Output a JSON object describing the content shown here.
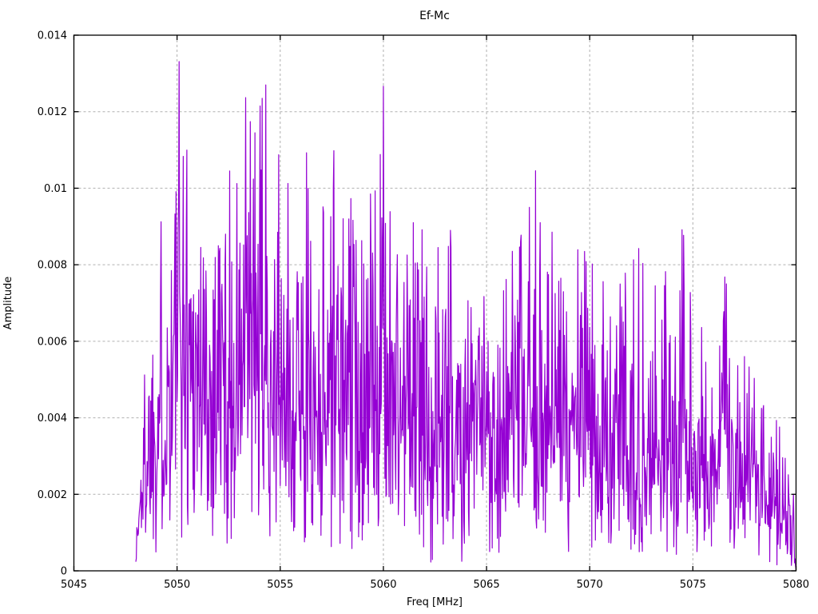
{
  "window": {
    "background": "#ffffff"
  },
  "chart_data": {
    "type": "line",
    "title": "Ef-Mc",
    "xlabel": "Freq [MHz]",
    "ylabel": "Amplitude",
    "xlim": [
      5045,
      5080
    ],
    "ylim": [
      0,
      0.014
    ],
    "xticks": [
      5045,
      5050,
      5055,
      5060,
      5065,
      5070,
      5075,
      5080
    ],
    "xtick_labels": [
      "5045",
      "5050",
      "5055",
      "5060",
      "5065",
      "5070",
      "5075",
      "5080"
    ],
    "yticks": [
      0,
      0.002,
      0.004,
      0.006,
      0.008,
      0.01,
      0.012,
      0.014
    ],
    "ytick_labels": [
      "0",
      "0.002",
      "0.004",
      "0.006",
      "0.008",
      "0.01",
      "0.012",
      "0.014"
    ],
    "grid": {
      "show": true,
      "color": "#b0b0b0",
      "dash": [
        3,
        3
      ]
    },
    "axis_color": "#000000",
    "tick_length": 6,
    "legend_position": "none",
    "series": [
      {
        "name": "Ef-Mc",
        "color": "#9400d3",
        "line_width": 1.2,
        "x_start": 5048.0,
        "x_end": 5080.0,
        "points_per_mhz": 40,
        "noise_seed": 1337,
        "noise_model": "amplitude = envelope(f) * clamp(sqrt(-ln(1-u))/1.9, 0.02, 1), u ~ U(0,1) seeded PRNG",
        "envelope_points": [
          [
            5048.0,
            0.001
          ],
          [
            5048.3,
            0.005
          ],
          [
            5048.6,
            0.0074
          ],
          [
            5049.0,
            0.0092
          ],
          [
            5049.4,
            0.0102
          ],
          [
            5049.7,
            0.0109
          ],
          [
            5050.0,
            0.0137
          ],
          [
            5050.4,
            0.0135
          ],
          [
            5050.7,
            0.0122
          ],
          [
            5051.0,
            0.0117
          ],
          [
            5051.4,
            0.0098
          ],
          [
            5051.7,
            0.0106
          ],
          [
            5052.0,
            0.0121
          ],
          [
            5052.4,
            0.0103
          ],
          [
            5052.8,
            0.0107
          ],
          [
            5053.2,
            0.0119
          ],
          [
            5053.6,
            0.0134
          ],
          [
            5054.0,
            0.0121
          ],
          [
            5054.3,
            0.0127
          ],
          [
            5054.7,
            0.012
          ],
          [
            5055.0,
            0.0105
          ],
          [
            5055.4,
            0.0101
          ],
          [
            5055.8,
            0.0097
          ],
          [
            5056.2,
            0.0113
          ],
          [
            5056.6,
            0.0093
          ],
          [
            5057.0,
            0.0104
          ],
          [
            5057.5,
            0.0127
          ],
          [
            5058.0,
            0.0099
          ],
          [
            5058.5,
            0.0097
          ],
          [
            5059.0,
            0.0124
          ],
          [
            5059.5,
            0.009
          ],
          [
            5059.9,
            0.0133
          ],
          [
            5060.2,
            0.0114
          ],
          [
            5060.6,
            0.01
          ],
          [
            5061.0,
            0.0093
          ],
          [
            5061.5,
            0.0095
          ],
          [
            5062.0,
            0.0089
          ],
          [
            5062.5,
            0.0093
          ],
          [
            5063.0,
            0.0079
          ],
          [
            5063.5,
            0.0099
          ],
          [
            5064.0,
            0.0085
          ],
          [
            5064.5,
            0.0073
          ],
          [
            5065.0,
            0.0083
          ],
          [
            5065.5,
            0.0079
          ],
          [
            5066.0,
            0.0081
          ],
          [
            5066.5,
            0.0086
          ],
          [
            5067.0,
            0.0091
          ],
          [
            5067.3,
            0.0107
          ],
          [
            5067.7,
            0.0094
          ],
          [
            5068.1,
            0.0092
          ],
          [
            5068.5,
            0.0084
          ],
          [
            5069.0,
            0.0087
          ],
          [
            5069.5,
            0.0096
          ],
          [
            5070.0,
            0.0082
          ],
          [
            5070.5,
            0.0075
          ],
          [
            5071.0,
            0.0077
          ],
          [
            5071.5,
            0.0082
          ],
          [
            5072.0,
            0.0091
          ],
          [
            5072.5,
            0.0082
          ],
          [
            5073.0,
            0.0071
          ],
          [
            5073.5,
            0.0081
          ],
          [
            5074.0,
            0.0073
          ],
          [
            5074.5,
            0.009
          ],
          [
            5075.0,
            0.0067
          ],
          [
            5075.5,
            0.0063
          ],
          [
            5076.0,
            0.0064
          ],
          [
            5076.5,
            0.0078
          ],
          [
            5077.0,
            0.0066
          ],
          [
            5077.5,
            0.0056
          ],
          [
            5078.0,
            0.005
          ],
          [
            5078.5,
            0.0042
          ],
          [
            5079.0,
            0.004
          ],
          [
            5079.5,
            0.0034
          ],
          [
            5079.8,
            0.0026
          ],
          [
            5080.0,
            0.001
          ]
        ]
      }
    ]
  }
}
